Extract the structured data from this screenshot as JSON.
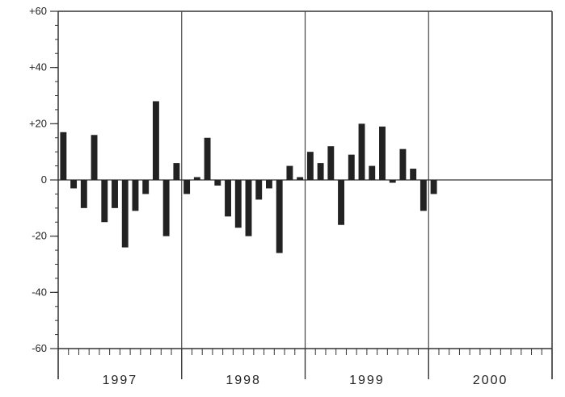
{
  "chart_data": {
    "type": "bar",
    "title": "",
    "xlabel": "",
    "ylabel": "",
    "ylim": [
      -60,
      60
    ],
    "yticks": [
      {
        "value": 60,
        "label": "+60"
      },
      {
        "value": 40,
        "label": "+40"
      },
      {
        "value": 20,
        "label": "+20"
      },
      {
        "value": 0,
        "label": "0"
      },
      {
        "value": -20,
        "label": "-20"
      },
      {
        "value": -40,
        "label": "-40"
      },
      {
        "value": -60,
        "label": "-60"
      }
    ],
    "minor_yticks_step": 5,
    "zero_line": true,
    "year_dividers": true,
    "years": [
      "1997",
      "1998",
      "1999",
      "2000"
    ],
    "months_per_year": 12,
    "series": [
      {
        "values": [
          17,
          -3,
          -10,
          16,
          -15,
          -10,
          -24,
          -11,
          -5,
          28,
          -20,
          6,
          -5,
          1,
          15,
          -2,
          -13,
          -17,
          -20,
          -7,
          -3,
          -26,
          5,
          1,
          10,
          6,
          12,
          -16,
          9,
          20,
          5,
          19,
          -1,
          11,
          4,
          -11,
          -5,
          null,
          null,
          null,
          null,
          null,
          null,
          null,
          null,
          null,
          null,
          null
        ]
      }
    ],
    "bar_color": "#222222"
  }
}
